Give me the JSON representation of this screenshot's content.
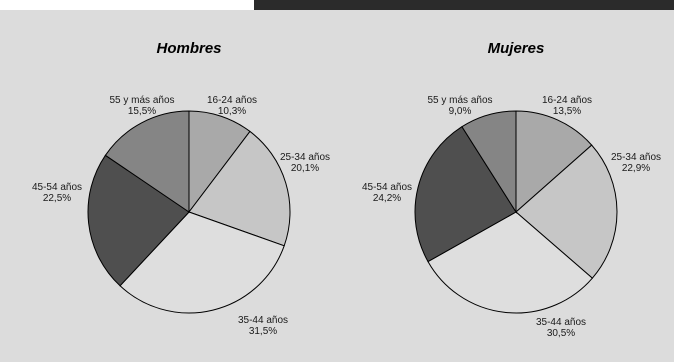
{
  "chart_data": [
    {
      "type": "pie",
      "title": "Hombres",
      "slices": [
        {
          "label": "16-24 años",
          "value_label": "10,3%",
          "value": 10.3,
          "color": "#a9a9a9"
        },
        {
          "label": "25-34 años",
          "value_label": "20,1%",
          "value": 20.1,
          "color": "#c6c6c6"
        },
        {
          "label": "35-44 años",
          "value_label": "31,5%",
          "value": 31.5,
          "color": "#dedede"
        },
        {
          "label": "45-54 años",
          "value_label": "22,5%",
          "value": 22.5,
          "color": "#4f4f4f"
        },
        {
          "label": "55 y más años",
          "value_label": "15,5%",
          "value": 15.5,
          "color": "#858585"
        }
      ]
    },
    {
      "type": "pie",
      "title": "Mujeres",
      "slices": [
        {
          "label": "16-24 años",
          "value_label": "13,5%",
          "value": 13.5,
          "color": "#a9a9a9"
        },
        {
          "label": "25-34 años",
          "value_label": "22,9%",
          "value": 22.9,
          "color": "#c6c6c6"
        },
        {
          "label": "35-44 años",
          "value_label": "30,5%",
          "value": 30.5,
          "color": "#dedede"
        },
        {
          "label": "45-54 años",
          "value_label": "24,2%",
          "value": 24.2,
          "color": "#4f4f4f"
        },
        {
          "label": "55 y más años",
          "value_label": "9,0%",
          "value": 9.0,
          "color": "#858585"
        }
      ]
    }
  ]
}
